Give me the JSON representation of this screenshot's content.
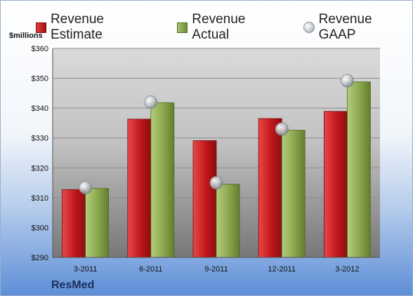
{
  "legend": {
    "estimate": "Revenue Estimate",
    "actual": "Revenue Actual",
    "gaap": "Revenue GAAP"
  },
  "unit_label": "$millions",
  "company": "ResMed",
  "colors": {
    "estimate": "#c0171b",
    "actual": "#8aa64b",
    "gaap": "#c9ccd2"
  },
  "chart_data": {
    "type": "bar",
    "categories": [
      "3-2011",
      "6-2011",
      "9-2011",
      "12-2011",
      "3-2012"
    ],
    "series": [
      {
        "name": "Revenue Estimate",
        "values": [
          312.7,
          336.3,
          329.1,
          336.5,
          338.9
        ]
      },
      {
        "name": "Revenue Actual",
        "values": [
          313.1,
          341.8,
          314.5,
          332.6,
          348.8
        ]
      },
      {
        "name": "Revenue GAAP",
        "type": "scatter",
        "values": [
          313.4,
          342.0,
          315.0,
          333.0,
          349.2
        ]
      }
    ],
    "ylabel": "$millions",
    "ylim": [
      290,
      360
    ],
    "yticks": [
      "$290",
      "$300",
      "$310",
      "$320",
      "$330",
      "$340",
      "$350",
      "$360"
    ],
    "grid": true,
    "legend_position": "top"
  }
}
